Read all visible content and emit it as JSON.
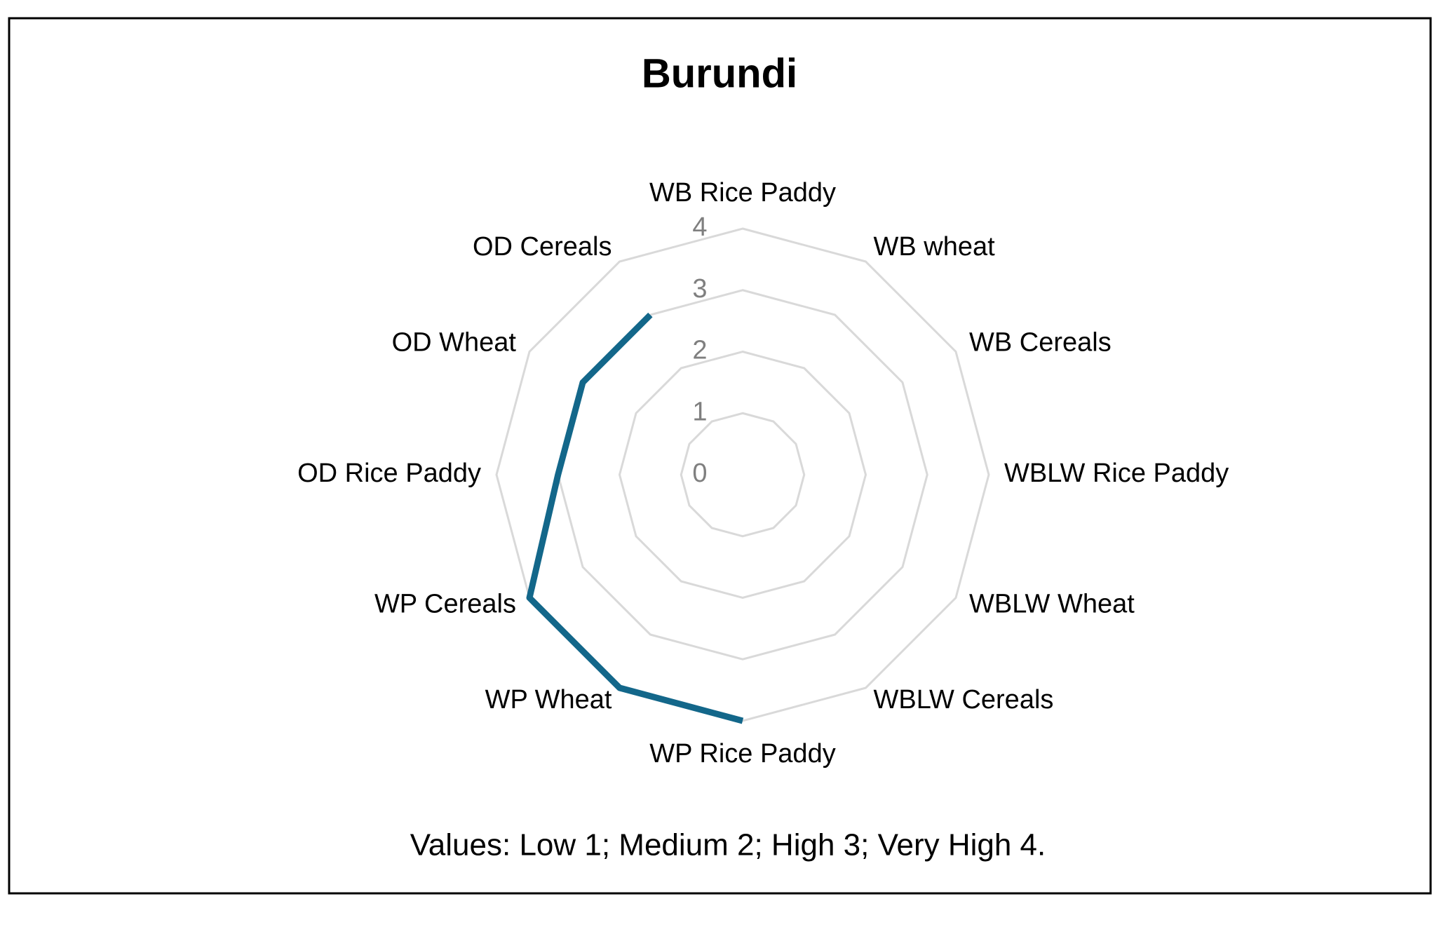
{
  "chart_data": {
    "type": "radar",
    "title": "Burundi",
    "categories": [
      "WB Rice Paddy",
      "WB wheat",
      "WB Cereals",
      "WBLW Rice Paddy",
      "WBLW Wheat",
      "WBLW Cereals",
      "WP Rice Paddy",
      "WP Wheat",
      "WP Cereals",
      "OD Rice Paddy",
      "OD Wheat",
      "OD Cereals"
    ],
    "values": [
      null,
      null,
      null,
      null,
      null,
      null,
      4,
      4,
      4,
      3,
      3,
      3
    ],
    "color": "#13678a",
    "ylim": [
      0,
      4
    ],
    "yticks": [
      0,
      1,
      2,
      3,
      4
    ],
    "grid": true,
    "annotation": "Values: Low 1; Medium 2; High 3; Very High 4."
  }
}
